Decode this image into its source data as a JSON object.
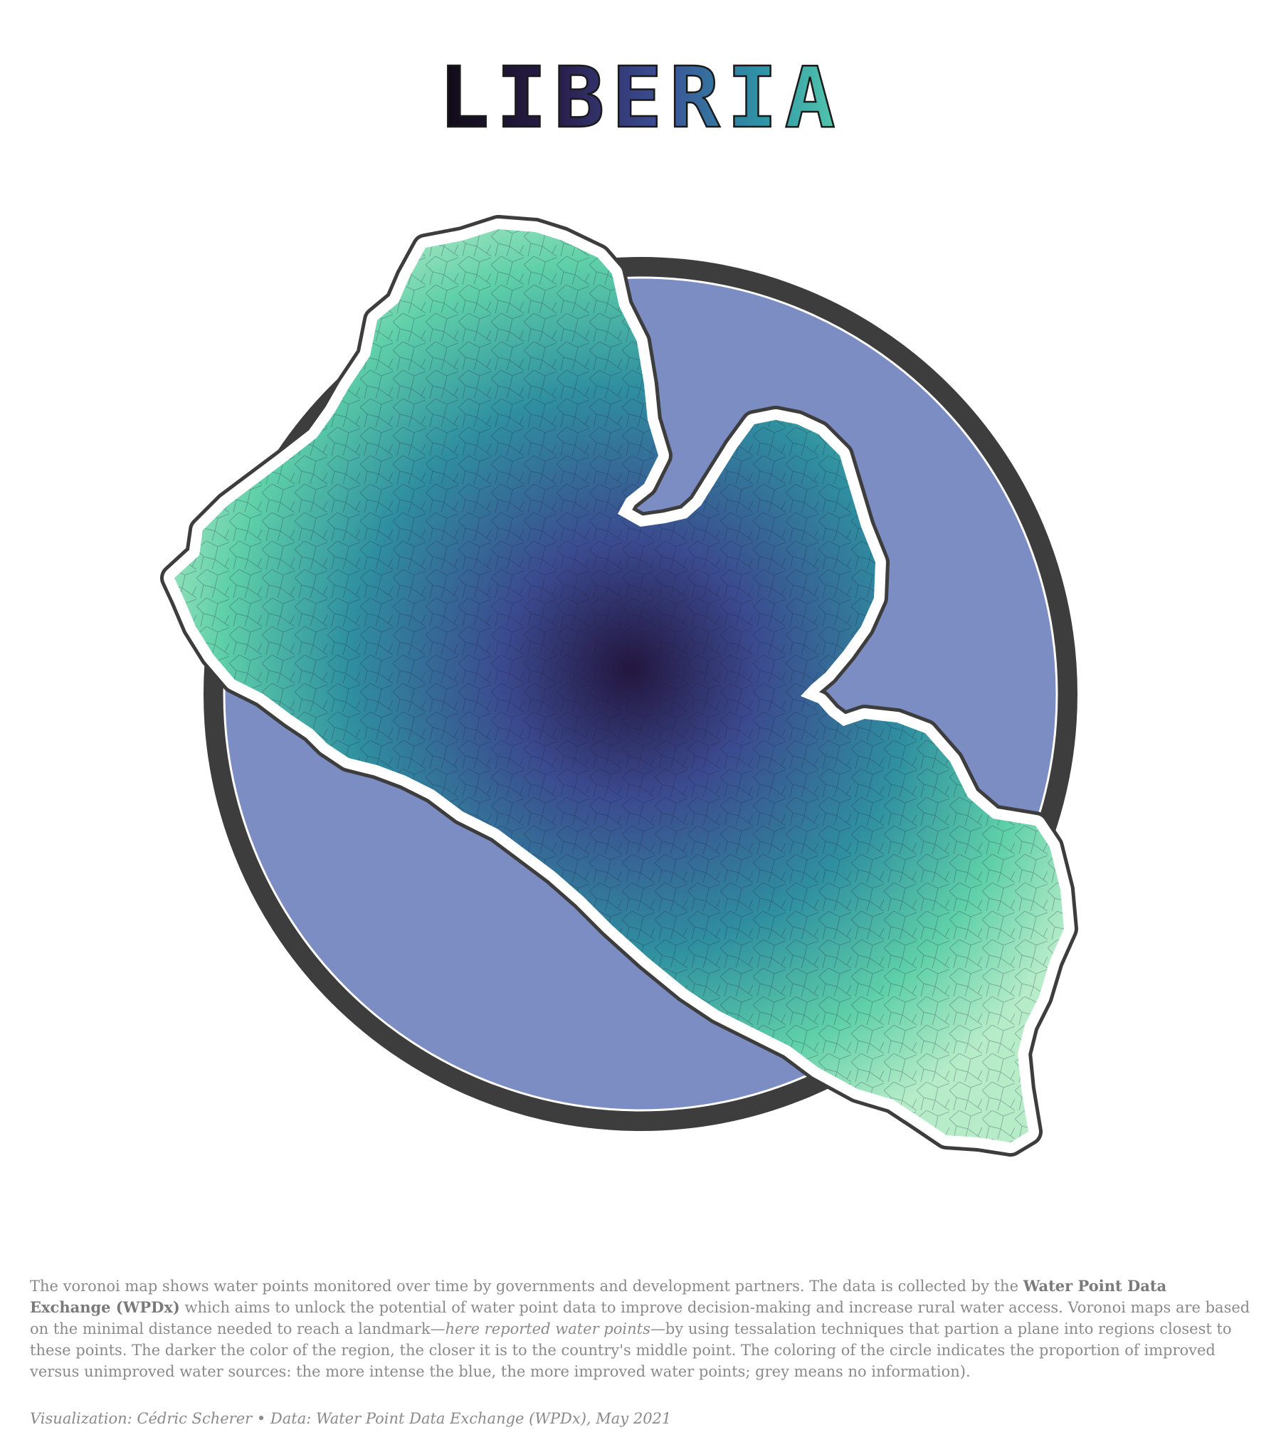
{
  "title": "LIBERIA",
  "description": {
    "p1": "The voronoi map shows water points monitored over time by governments and development partners. The data is collected by the ",
    "org": "Water Point Data Exchange (WPDx)",
    "p2": " which aims to unlock the potential of water point data to improve decision-making and increase rural water access. Voronoi maps are based on the minimal distance needed to reach a landmark—",
    "em": "here reported water points",
    "p3": "—by using tessalation techniques that partion a plane into regions closest to these points. The darker the color of the region, the closer it is to the country's middle point. The coloring of the circle indicates the proportion of improved versus unimproved water sources: the more intense the blue, the more improved water points; grey means no information)."
  },
  "credits": "Visualization: Cédric Scherer • Data: Water Point Data Exchange (WPDx), May 2021",
  "colors": {
    "circle_fill": "#7b8dc2",
    "circle_ring": "#3d3d3d",
    "outline": "#3d3d3d",
    "gradient_center": "#23163f",
    "gradient_mid": "#3b4a8f",
    "gradient_outer": "#2f8fa0",
    "gradient_edge": "#5fd0a8",
    "gradient_far": "#b6ecc8",
    "text": "#8a8a8a"
  }
}
